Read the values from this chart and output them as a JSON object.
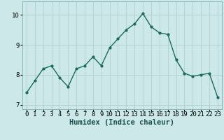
{
  "x": [
    0,
    1,
    2,
    3,
    4,
    5,
    6,
    7,
    8,
    9,
    10,
    11,
    12,
    13,
    14,
    15,
    16,
    17,
    18,
    19,
    20,
    21,
    22,
    23
  ],
  "y": [
    7.4,
    7.8,
    8.2,
    8.3,
    7.9,
    7.6,
    8.2,
    8.3,
    8.6,
    8.3,
    8.9,
    9.2,
    9.5,
    9.7,
    10.05,
    9.6,
    9.4,
    9.35,
    8.5,
    8.05,
    7.95,
    8.0,
    8.05,
    7.25
  ],
  "xlabel": "Humidex (Indice chaleur)",
  "xlim": [
    -0.5,
    23.5
  ],
  "ylim": [
    6.85,
    10.45
  ],
  "yticks": [
    7,
    8,
    9,
    10
  ],
  "xticks": [
    0,
    1,
    2,
    3,
    4,
    5,
    6,
    7,
    8,
    9,
    10,
    11,
    12,
    13,
    14,
    15,
    16,
    17,
    18,
    19,
    20,
    21,
    22,
    23
  ],
  "line_color": "#1a6b5a",
  "marker_color": "#1a6b5a",
  "bg_color": "#cce8e8",
  "grid_color": "#b0d0d0",
  "xlabel_fontsize": 7.5,
  "tick_fontsize": 6.5
}
